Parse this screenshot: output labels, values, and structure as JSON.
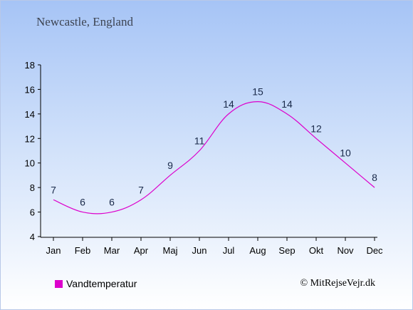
{
  "header": {
    "location": "Newcastle, England"
  },
  "legend": {
    "label": "Vandtemperatur",
    "color": "#dd00cc"
  },
  "footer": {
    "copyright": "© MitRejseVejr.dk"
  },
  "chart_data": {
    "type": "line",
    "categories": [
      "Jan",
      "Feb",
      "Mar",
      "Apr",
      "Maj",
      "Jun",
      "Jul",
      "Aug",
      "Sep",
      "Okt",
      "Nov",
      "Dec"
    ],
    "series": [
      {
        "name": "Vandtemperatur",
        "values": [
          7,
          6,
          6,
          7,
          9,
          11,
          14,
          15,
          14,
          12,
          10,
          8
        ],
        "color": "#dd00cc"
      }
    ],
    "ylim": [
      4,
      18
    ],
    "yticks": [
      4,
      6,
      8,
      10,
      12,
      14,
      16,
      18
    ],
    "grid": false,
    "legend_position": "bottom-left"
  }
}
